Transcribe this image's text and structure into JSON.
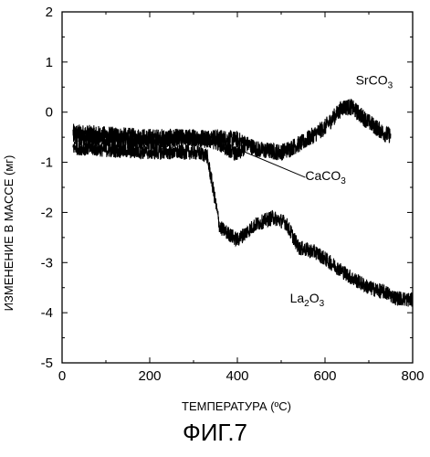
{
  "chart_data": {
    "type": "line",
    "title": "",
    "xlabel": "ТЕМПЕРАТУРА (ºC)",
    "ylabel": "ИЗМЕНЕНИЕ В МАССЕ (мг)",
    "xlim": [
      0,
      800
    ],
    "ylim": [
      -5,
      2
    ],
    "x_ticks": [
      0,
      200,
      400,
      600,
      800
    ],
    "y_ticks": [
      2,
      1,
      0,
      -1,
      -2,
      -3,
      -4,
      -5
    ],
    "grid": false,
    "legend": "none",
    "line_color": "#000000",
    "series": [
      {
        "name": "SrCO3",
        "noise": 0.17,
        "x": [
          25,
          100,
          200,
          300,
          350,
          400,
          450,
          500,
          550,
          600,
          640,
          660,
          700,
          740,
          750
        ],
        "y": [
          -0.4,
          -0.45,
          -0.5,
          -0.5,
          -0.5,
          -0.55,
          -0.75,
          -0.8,
          -0.6,
          -0.3,
          0.1,
          0.1,
          -0.2,
          -0.45,
          -0.45
        ]
      },
      {
        "name": "CaCO3",
        "noise": 0.15,
        "x": [
          25,
          100,
          200,
          300,
          350,
          380,
          400,
          420
        ],
        "y": [
          -0.5,
          -0.55,
          -0.6,
          -0.55,
          -0.6,
          -0.75,
          -0.85,
          -0.7
        ]
      },
      {
        "name": "La2O3",
        "noise": 0.15,
        "x": [
          25,
          100,
          200,
          300,
          330,
          340,
          360,
          400,
          440,
          480,
          510,
          540,
          580,
          620,
          660,
          700,
          740,
          760,
          800
        ],
        "y": [
          -0.7,
          -0.75,
          -0.8,
          -0.8,
          -0.85,
          -1.3,
          -2.3,
          -2.55,
          -2.25,
          -2.1,
          -2.2,
          -2.7,
          -2.8,
          -3.05,
          -3.3,
          -3.5,
          -3.6,
          -3.7,
          -3.75
        ]
      }
    ],
    "annotations": [
      {
        "id": "sr",
        "base": "SrCO",
        "sub": "3",
        "x": 670,
        "y": 0.55,
        "leader": null
      },
      {
        "id": "ca",
        "base": "CaCO",
        "sub": "3",
        "x": 555,
        "y": -1.35,
        "leader": [
          [
            405,
            -0.75
          ],
          [
            555,
            -1.3
          ]
        ]
      },
      {
        "id": "la",
        "base": "La",
        "sub": "2",
        "base2": "O",
        "sub2": "3",
        "x": 520,
        "y": -3.8,
        "leader": null
      }
    ]
  },
  "figure_caption": "ФИГ.7"
}
